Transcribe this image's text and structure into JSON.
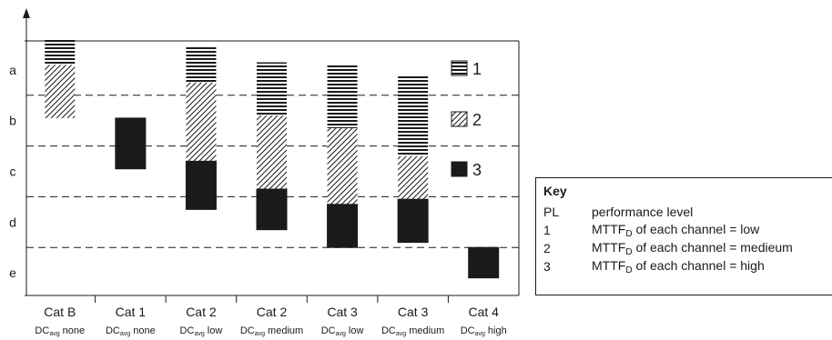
{
  "chart_data": {
    "type": "bar",
    "subtype": "floating-stacked-range",
    "title": "",
    "xlabel": "",
    "ylabel": "",
    "y_levels": [
      "a",
      "b",
      "c",
      "d",
      "e"
    ],
    "y_range_note": "levels a (top) to e (bottom); each level spans one unit, a = 0..1, e = 4..5",
    "ylim": [
      5.4,
      -0.6
    ],
    "categories": [
      {
        "main": "Cat B",
        "dc_prefix": "DC",
        "dc_sub": "avg",
        "dc_suffix": "none"
      },
      {
        "main": "Cat 1",
        "dc_prefix": "DC",
        "dc_sub": "avg",
        "dc_suffix": "none"
      },
      {
        "main": "Cat 2",
        "dc_prefix": "DC",
        "dc_sub": "avg",
        "dc_suffix": "low"
      },
      {
        "main": "Cat 2",
        "dc_prefix": "DC",
        "dc_sub": "avg",
        "dc_suffix": "medium"
      },
      {
        "main": "Cat 3",
        "dc_prefix": "DC",
        "dc_sub": "avg",
        "dc_suffix": "low"
      },
      {
        "main": "Cat 3",
        "dc_prefix": "DC",
        "dc_sub": "avg",
        "dc_suffix": "medium"
      },
      {
        "main": "Cat 4",
        "dc_prefix": "DC",
        "dc_sub": "avg",
        "dc_suffix": "high"
      }
    ],
    "series": [
      {
        "name": "1",
        "pattern": "horizontal-hatch",
        "ranges": [
          [
            -0.12,
            0.4
          ],
          null,
          [
            0.05,
            0.75
          ],
          [
            0.35,
            1.4
          ],
          [
            0.38,
            1.65
          ],
          [
            0.6,
            2.2
          ],
          null
        ]
      },
      {
        "name": "2",
        "pattern": "diagonal-hatch",
        "ranges": [
          [
            0.4,
            1.45
          ],
          null,
          [
            0.75,
            2.3
          ],
          [
            1.4,
            2.85
          ],
          [
            1.65,
            3.15
          ],
          [
            2.2,
            3.05
          ],
          null
        ]
      },
      {
        "name": "3",
        "pattern": "solid",
        "ranges": [
          null,
          [
            1.45,
            2.45
          ],
          [
            2.3,
            3.25
          ],
          [
            2.85,
            3.65
          ],
          [
            3.15,
            4.0
          ],
          [
            3.05,
            3.9
          ],
          [
            4.0,
            4.6
          ]
        ]
      }
    ],
    "legend": {
      "placement": "top-right",
      "labels": [
        "1",
        "2",
        "3"
      ]
    },
    "grid": "dashed horizontal lines at level boundaries"
  },
  "key": {
    "title": "Key",
    "rows": [
      {
        "code": "PL",
        "text": "performance level"
      },
      {
        "code": "1",
        "prefix": "MTTF",
        "sub": "D",
        "text": " of each channel = low"
      },
      {
        "code": "2",
        "prefix": "MTTF",
        "sub": "D",
        "text": " of each channel = medieum"
      },
      {
        "code": "3",
        "prefix": "MTTF",
        "sub": "D",
        "text": " of each channel = high"
      }
    ]
  }
}
